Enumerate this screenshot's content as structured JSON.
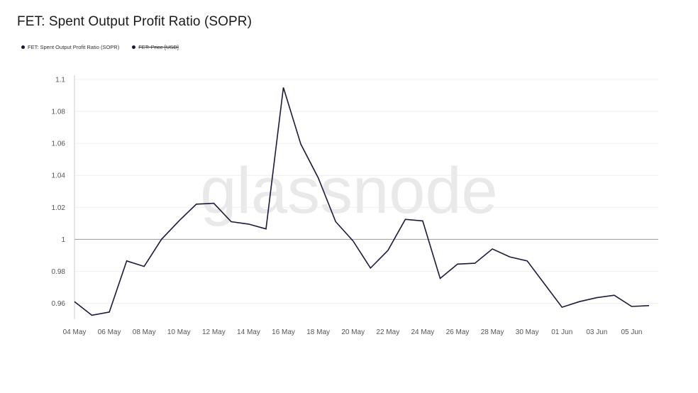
{
  "title": "FET: Spent Output Profit Ratio (SOPR)",
  "legend": [
    {
      "label": "FET: Spent Output Profit Ratio (SOPR)",
      "color": "#1a1a2e",
      "disabled": false
    },
    {
      "label": "FET: Price [USD]",
      "color": "#1a1a2e",
      "disabled": true
    }
  ],
  "watermark": "glassnode",
  "colors": {
    "line": "#1a1a3a",
    "grid": "#ebebeb",
    "baseline": "#9a9a9a",
    "axis": "#cccccc"
  },
  "chart_data": {
    "type": "line",
    "title": "FET: Spent Output Profit Ratio (SOPR)",
    "xlabel": "",
    "ylabel": "",
    "ylim": [
      0.95,
      1.1
    ],
    "yticks": [
      0.96,
      0.98,
      1,
      1.02,
      1.04,
      1.06,
      1.08,
      1.1
    ],
    "ytick_labels": [
      "0.96",
      "0.98",
      "1",
      "1.02",
      "1.04",
      "1.06",
      "1.08",
      "1.1"
    ],
    "reference_line": 1,
    "grid": true,
    "xtick_labels": [
      "04 May",
      "06 May",
      "08 May",
      "10 May",
      "12 May",
      "14 May",
      "16 May",
      "18 May",
      "20 May",
      "22 May",
      "24 May",
      "26 May",
      "28 May",
      "30 May",
      "01 Jun",
      "03 Jun",
      "05 Jun"
    ],
    "x": [
      "04 May",
      "05 May",
      "06 May",
      "07 May",
      "08 May",
      "09 May",
      "10 May",
      "11 May",
      "12 May",
      "13 May",
      "14 May",
      "15 May",
      "16 May",
      "17 May",
      "18 May",
      "19 May",
      "20 May",
      "21 May",
      "22 May",
      "23 May",
      "24 May",
      "25 May",
      "26 May",
      "27 May",
      "28 May",
      "29 May",
      "30 May",
      "31 May",
      "01 Jun",
      "02 Jun",
      "03 Jun",
      "04 Jun",
      "05 Jun",
      "06 Jun"
    ],
    "series": [
      {
        "name": "FET: Spent Output Profit Ratio (SOPR)",
        "values": [
          0.961,
          0.9525,
          0.9545,
          0.9865,
          0.983,
          1.0,
          1.0115,
          1.022,
          1.0225,
          1.011,
          1.0095,
          1.0065,
          1.095,
          1.0595,
          1.0385,
          1.011,
          0.999,
          0.982,
          0.993,
          1.0125,
          1.0115,
          0.9755,
          0.9845,
          0.985,
          0.994,
          0.989,
          0.9865,
          0.972,
          0.9575,
          0.961,
          0.9635,
          0.965,
          0.958,
          0.9585
        ]
      }
    ]
  }
}
